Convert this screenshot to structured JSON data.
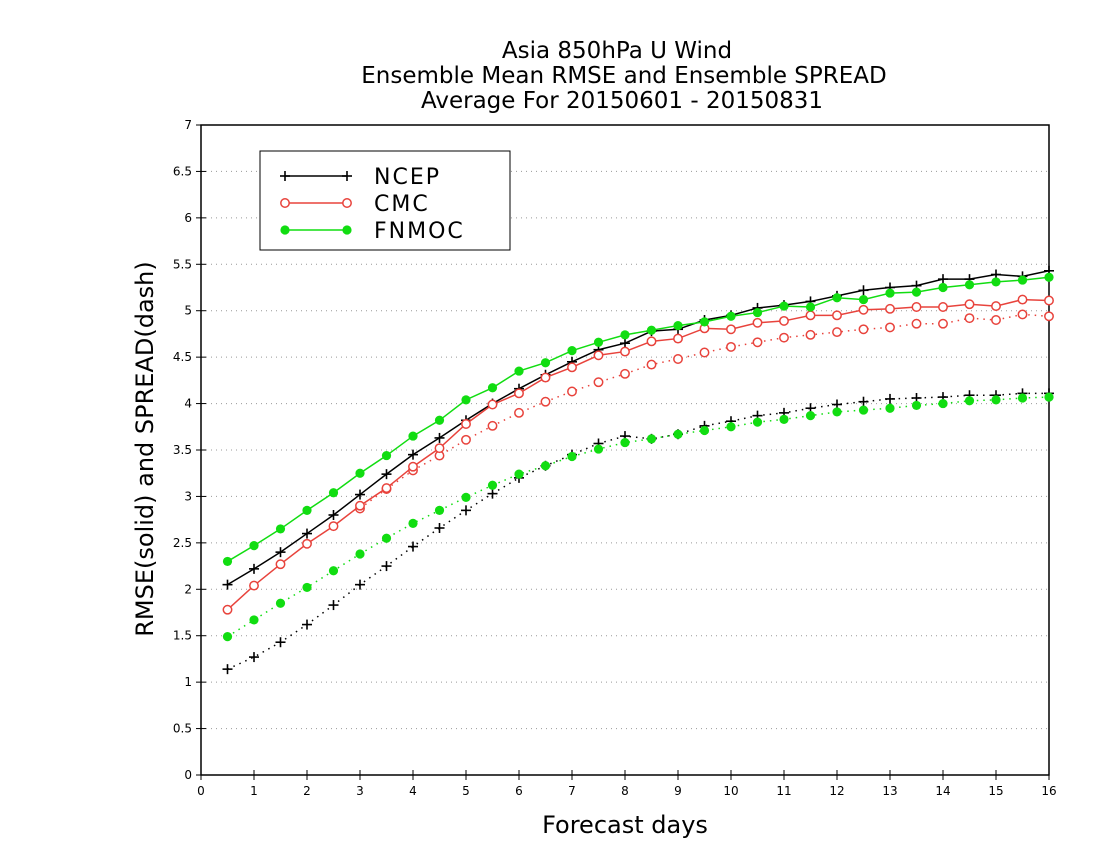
{
  "chart_data": {
    "type": "line",
    "title_lines": [
      "Asia 850hPa U Wind",
      "Ensemble Mean RMSE and Ensemble SPREAD",
      "Average For 20150601 - 20150831"
    ],
    "xlabel": "Forecast days",
    "ylabel": "RMSE(solid) and SPREAD(dash)",
    "xlim": [
      0,
      16
    ],
    "ylim": [
      0,
      7
    ],
    "x_ticks": [
      "0",
      "1",
      "2",
      "3",
      "4",
      "5",
      "6",
      "7",
      "8",
      "9",
      "10",
      "11",
      "12",
      "13",
      "14",
      "15",
      "16"
    ],
    "y_ticks": [
      "0",
      "0.5",
      "1",
      "1.5",
      "2",
      "2.5",
      "3",
      "3.5",
      "4",
      "4.5",
      "5",
      "5.5",
      "6",
      "6.5",
      "7"
    ],
    "grid": "horizontal dotted",
    "legend_position": "top-left",
    "x": [
      0.5,
      1,
      1.5,
      2,
      2.5,
      3,
      3.5,
      4,
      4.5,
      5,
      5.5,
      6,
      6.5,
      7,
      7.5,
      8,
      8.5,
      9,
      9.5,
      10,
      10.5,
      11,
      11.5,
      12,
      12.5,
      13,
      13.5,
      14,
      14.5,
      15,
      15.5,
      16
    ],
    "series": [
      {
        "name": "NCEP",
        "color": "#000000",
        "marker": "plus",
        "rmse": [
          2.05,
          2.22,
          2.4,
          2.6,
          2.8,
          3.02,
          3.24,
          3.45,
          3.63,
          3.82,
          4.0,
          4.16,
          4.31,
          4.45,
          4.58,
          4.65,
          4.78,
          4.8,
          4.9,
          4.95,
          5.03,
          5.06,
          5.1,
          5.16,
          5.22,
          5.25,
          5.27,
          5.34,
          5.34,
          5.39,
          5.37,
          5.43
        ],
        "spread": [
          1.14,
          1.27,
          1.43,
          1.62,
          1.83,
          2.05,
          2.25,
          2.46,
          2.66,
          2.85,
          3.03,
          3.2,
          3.33,
          3.45,
          3.57,
          3.65,
          3.62,
          3.67,
          3.76,
          3.81,
          3.87,
          3.9,
          3.95,
          3.99,
          4.02,
          4.05,
          4.06,
          4.07,
          4.09,
          4.09,
          4.11,
          4.11
        ]
      },
      {
        "name": "CMC",
        "color": "#e8433c",
        "marker": "open-circle",
        "rmse": [
          1.78,
          2.04,
          2.27,
          2.49,
          2.68,
          2.9,
          3.09,
          3.32,
          3.52,
          3.78,
          3.99,
          4.11,
          4.28,
          4.39,
          4.52,
          4.56,
          4.67,
          4.7,
          4.81,
          4.8,
          4.87,
          4.89,
          4.95,
          4.95,
          5.01,
          5.02,
          5.04,
          5.04,
          5.07,
          5.05,
          5.12,
          5.11
        ],
        "spread": [
          null,
          null,
          null,
          null,
          null,
          2.87,
          3.08,
          3.28,
          3.44,
          3.61,
          3.76,
          3.9,
          4.02,
          4.13,
          4.23,
          4.32,
          4.42,
          4.48,
          4.55,
          4.61,
          4.66,
          4.71,
          4.74,
          4.77,
          4.8,
          4.82,
          4.86,
          4.86,
          4.92,
          4.9,
          4.96,
          4.94
        ]
      },
      {
        "name": "FNMOC",
        "color": "#11dd11",
        "marker": "filled-circle",
        "rmse": [
          2.3,
          2.47,
          2.65,
          2.85,
          3.04,
          3.25,
          3.44,
          3.65,
          3.82,
          4.04,
          4.17,
          4.35,
          4.44,
          4.57,
          4.66,
          4.74,
          4.79,
          4.84,
          4.88,
          4.94,
          4.98,
          5.05,
          5.04,
          5.14,
          5.12,
          5.19,
          5.2,
          5.25,
          5.28,
          5.31,
          5.33,
          5.36
        ],
        "spread": [
          1.49,
          1.67,
          1.85,
          2.02,
          2.2,
          2.38,
          2.55,
          2.71,
          2.85,
          2.99,
          3.12,
          3.24,
          3.33,
          3.43,
          3.51,
          3.58,
          3.62,
          3.67,
          3.71,
          3.75,
          3.8,
          3.83,
          3.87,
          3.91,
          3.93,
          3.95,
          3.98,
          4.0,
          4.03,
          4.04,
          4.06,
          4.07
        ]
      }
    ]
  }
}
